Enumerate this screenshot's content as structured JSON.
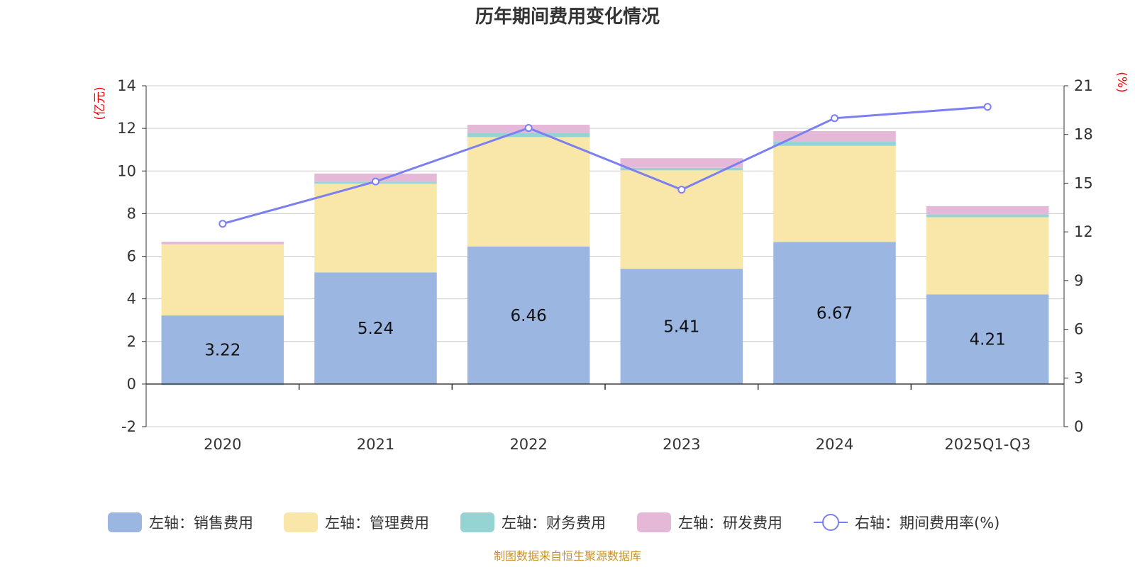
{
  "chart_data": {
    "type": "bar",
    "stacked": true,
    "title": "历年期间费用变化情况",
    "categories": [
      "2020",
      "2021",
      "2022",
      "2023",
      "2024",
      "2025Q1-Q3"
    ],
    "series": [
      {
        "name": "左轴：销售费用",
        "axis": "left",
        "color": "#9bb7e1",
        "values": [
          3.22,
          5.24,
          6.46,
          5.41,
          6.67,
          4.21
        ]
      },
      {
        "name": "左轴：管理费用",
        "axis": "left",
        "color": "#f8e7a8",
        "values": [
          3.34,
          4.17,
          5.13,
          4.62,
          4.51,
          3.62
        ]
      },
      {
        "name": "左轴：财务费用",
        "axis": "left",
        "color": "#96d4d4",
        "values": [
          -0.05,
          0.09,
          0.2,
          0.12,
          0.22,
          0.14
        ]
      },
      {
        "name": "左轴：研发费用",
        "axis": "left",
        "color": "#e6b8d8",
        "values": [
          0.12,
          0.38,
          0.38,
          0.45,
          0.47,
          0.38
        ]
      },
      {
        "name": "右轴：期间费用率(%)",
        "axis": "right",
        "type": "line",
        "color": "#7b7ff0",
        "values": [
          12.5,
          15.1,
          18.4,
          14.6,
          19.0,
          19.7
        ]
      }
    ],
    "bar_labels": [
      "3.22",
      "5.24",
      "6.46",
      "5.41",
      "6.67",
      "4.21"
    ],
    "left_axis": {
      "label": "(亿元)",
      "ylim": [
        -2,
        14
      ],
      "ticks": [
        "-2",
        "0",
        "2",
        "4",
        "6",
        "8",
        "10",
        "12",
        "14"
      ],
      "tick_values": [
        -2,
        0,
        2,
        4,
        6,
        8,
        10,
        12,
        14
      ]
    },
    "right_axis": {
      "label": "(%)",
      "ylim": [
        0,
        21
      ],
      "ticks": [
        "0",
        "3",
        "6",
        "9",
        "12",
        "15",
        "18",
        "21"
      ],
      "tick_values": [
        0,
        3,
        6,
        9,
        12,
        15,
        18,
        21
      ]
    },
    "grid": true,
    "legend_position": "bottom"
  },
  "footer": {
    "source": "制图数据来自恒生聚源数据库"
  }
}
